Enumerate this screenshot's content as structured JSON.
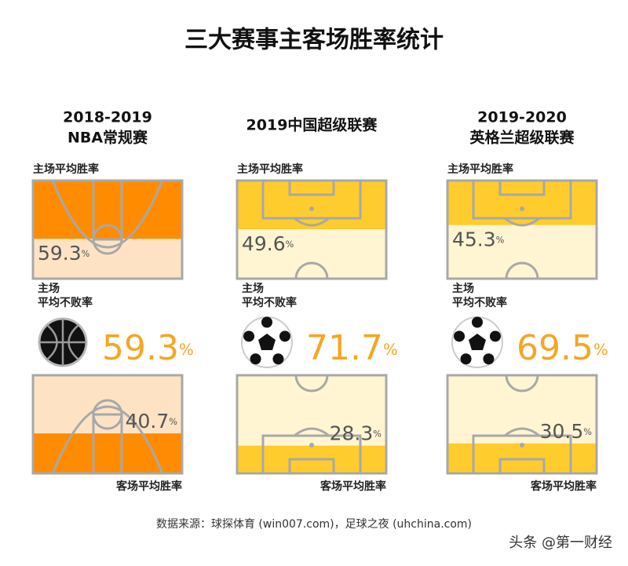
{
  "title": "三大赛事主客场胜率统计",
  "percent_sign": "%",
  "panels": [
    {
      "sport": "basketball",
      "title": [
        "2018-2019",
        "NBA常规赛"
      ],
      "home_label": "主场平均胜率",
      "home_win": 59.3,
      "unbeaten_label": [
        "主场",
        "平均不败率"
      ],
      "unbeaten": 59.3,
      "away_win": 40.7,
      "away_label": "客场平均胜率",
      "dark": "#ff8c00",
      "light": "#fde3c4"
    },
    {
      "sport": "football",
      "title": [
        "2019中国超级联赛"
      ],
      "home_label": "主场平均胜率",
      "home_win": 49.6,
      "unbeaten_label": [
        "主场",
        "平均不败率"
      ],
      "unbeaten": 71.7,
      "away_win": 28.3,
      "away_label": "客场平均胜率",
      "dark": "#ffcc2e",
      "light": "#fff5d2"
    },
    {
      "sport": "football",
      "title": [
        "2019-2020",
        "英格兰超级联赛"
      ],
      "home_label": "主场平均胜率",
      "home_win": 45.3,
      "unbeaten_label": [
        "主场",
        "平均不败率"
      ],
      "unbeaten": 69.5,
      "away_win": 30.5,
      "away_label": "客场平均胜率",
      "dark": "#ffcc2e",
      "light": "#fff5d2"
    }
  ],
  "source": "数据来源：球探体育 (win007.com)，足球之夜 (uhchina.com)",
  "watermark": "头条 @第一财经"
}
